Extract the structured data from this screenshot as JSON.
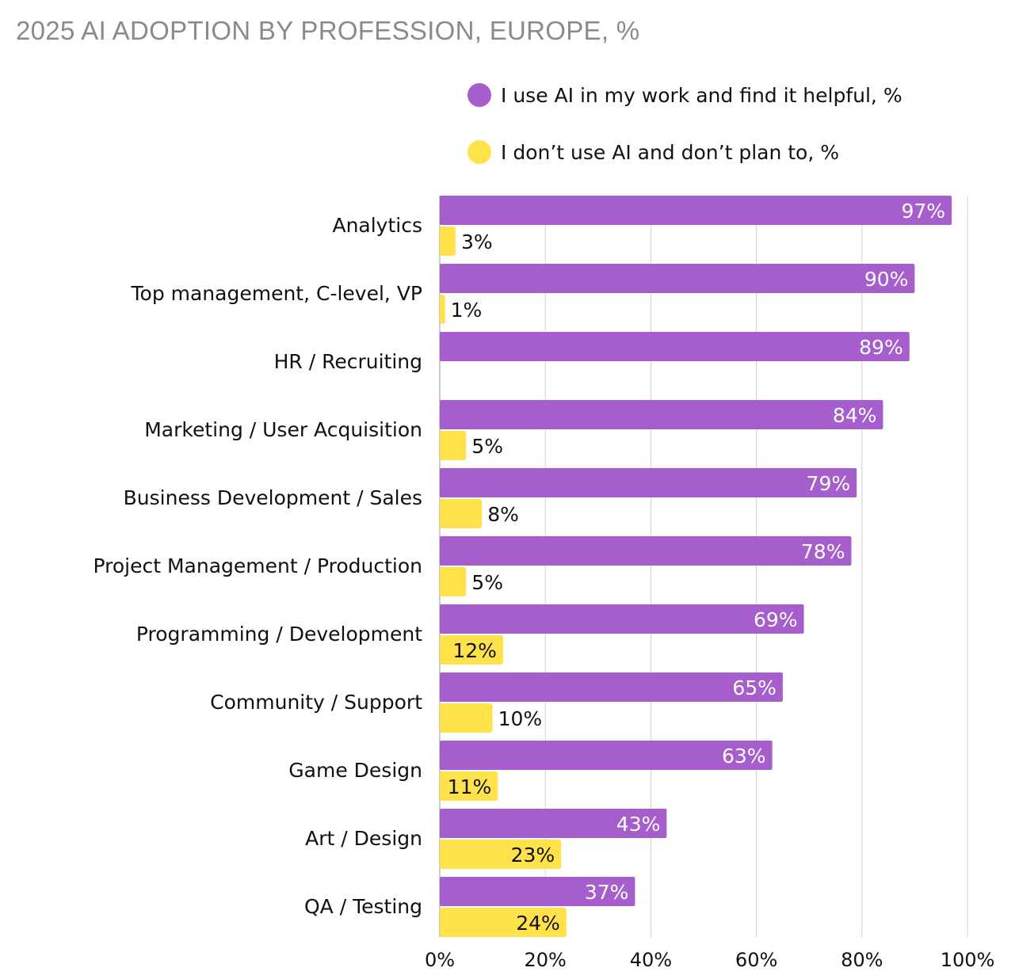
{
  "chart_data": {
    "type": "bar",
    "orientation": "horizontal",
    "title": "2025 AI ADOPTION BY PROFESSION, EUROPE, %",
    "categories": [
      "Analytics",
      "Top management, C-level, VP",
      "HR / Recruiting",
      "Marketing / User Acquisition",
      "Business Development / Sales",
      "Project Management / Production",
      "Programming / Development",
      "Community / Support",
      "Game Design",
      "Art / Design",
      "QA / Testing"
    ],
    "series": [
      {
        "name": "I use AI in my work and find it helpful, %",
        "color": "#A65ECC",
        "values": [
          97,
          90,
          89,
          84,
          79,
          78,
          69,
          65,
          63,
          43,
          37
        ]
      },
      {
        "name": "I don’t use AI and don’t plan to, %",
        "color": "#FFE14A",
        "values": [
          3,
          1,
          null,
          5,
          8,
          5,
          12,
          10,
          11,
          23,
          24
        ]
      }
    ],
    "xlim": [
      0,
      100
    ],
    "xticks": [
      "0%",
      "20%",
      "40%",
      "60%",
      "80%",
      "100%"
    ],
    "grid": true,
    "legend": "top-right"
  }
}
